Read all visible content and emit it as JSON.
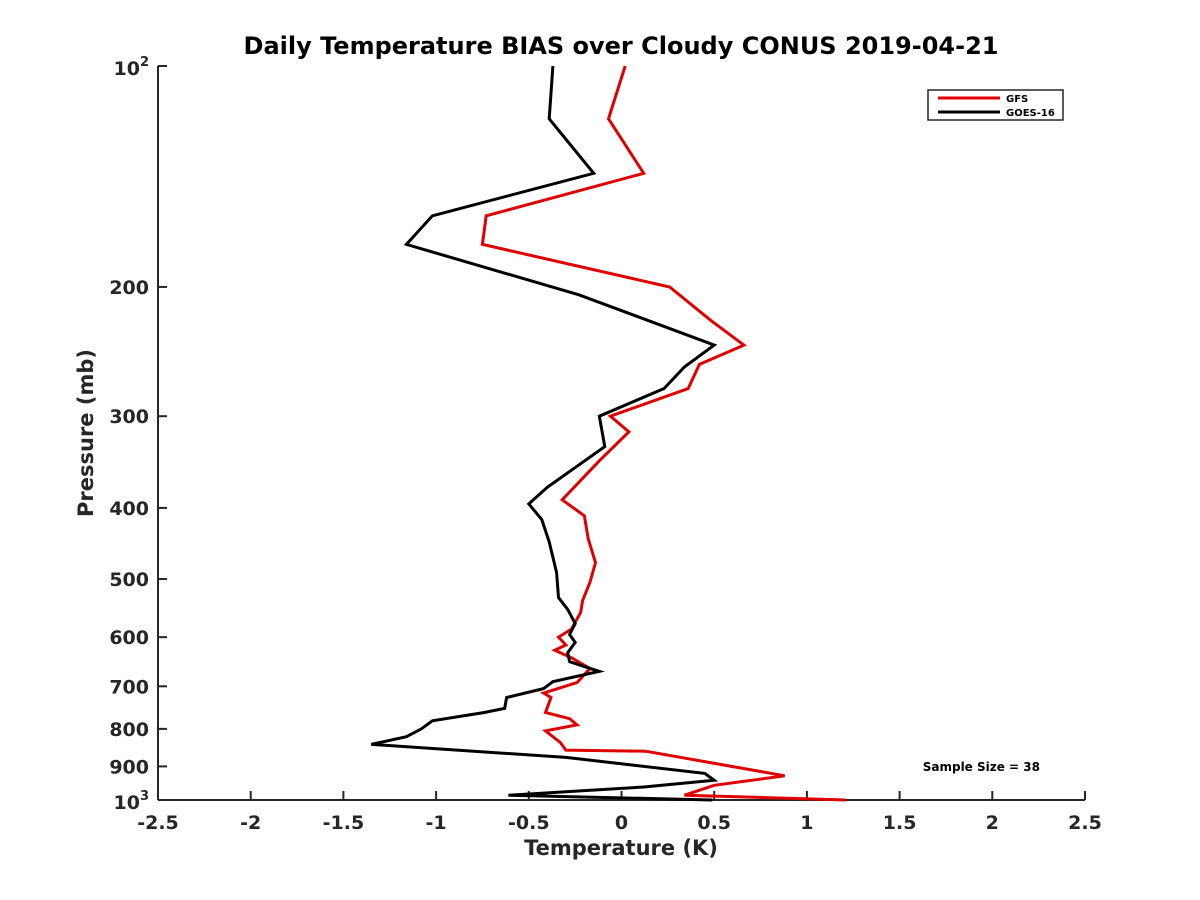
{
  "chart_data": {
    "type": "line",
    "title": "Daily Temperature BIAS over Cloudy CONUS 2019-04-21",
    "xlabel": "Temperature (K)",
    "ylabel": "Pressure (mb)",
    "xlim": [
      -2.5,
      2.5
    ],
    "ylim": [
      100,
      1000
    ],
    "y_scale": "log",
    "y_reversed": true,
    "x_ticks": [
      -2.5,
      -2,
      -1.5,
      -1,
      -0.5,
      0,
      0.5,
      1,
      1.5,
      2,
      2.5
    ],
    "x_tick_labels": [
      "-2.5",
      "-2",
      "-1.5",
      "-1",
      "-0.5",
      "0",
      "0.5",
      "1",
      "1.5",
      "2",
      "2.5"
    ],
    "y_ticks": [
      200,
      300,
      400,
      500,
      600,
      700,
      800,
      900
    ],
    "y_tick_labels": [
      "200",
      "300",
      "400",
      "500",
      "600",
      "700",
      "800",
      "900"
    ],
    "y_tick_top": {
      "base": "10",
      "exp": "2"
    },
    "y_tick_bottom": {
      "base": "10",
      "exp": "3"
    },
    "legend_position": "top-right",
    "annotation": "Sample Size = 38",
    "series": [
      {
        "name": "GFS",
        "color": "#e00000",
        "x": [
          0.02,
          -0.07,
          0.12,
          -0.73,
          -0.75,
          0.26,
          0.48,
          0.66,
          0.42,
          0.36,
          -0.06,
          0.04,
          -0.12,
          -0.32,
          -0.2,
          -0.18,
          -0.14,
          -0.17,
          -0.21,
          -0.22,
          -0.27,
          -0.34,
          -0.3,
          -0.36,
          -0.27,
          -0.17,
          -0.24,
          -0.42,
          -0.38,
          -0.41,
          -0.28,
          -0.24,
          -0.41,
          -0.33,
          -0.3,
          0.13,
          0.54,
          0.88,
          0.5,
          0.34,
          1.21
        ],
        "y": [
          100,
          118,
          140,
          160,
          175,
          200,
          222,
          240,
          255,
          275,
          300,
          315,
          345,
          390,
          410,
          440,
          475,
          505,
          535,
          555,
          585,
          600,
          615,
          625,
          640,
          662,
          692,
          715,
          725,
          760,
          775,
          790,
          805,
          835,
          855,
          858,
          895,
          927,
          955,
          985,
          1000
        ]
      },
      {
        "name": "GOES-16",
        "color": "#000000",
        "x": [
          -0.37,
          -0.39,
          -0.15,
          -1.02,
          -1.16,
          -0.23,
          0.5,
          0.34,
          0.23,
          -0.12,
          -0.09,
          -0.4,
          -0.5,
          -0.43,
          -0.39,
          -0.35,
          -0.34,
          -0.29,
          -0.25,
          -0.28,
          -0.25,
          -0.29,
          -0.28,
          -0.12,
          -0.37,
          -0.42,
          -0.62,
          -0.63,
          -0.74,
          -1.02,
          -1.08,
          -1.16,
          -1.35,
          -0.3,
          0.45,
          0.5,
          0.12,
          -0.61,
          0.49
        ],
        "y": [
          100,
          118,
          140,
          160,
          175,
          205,
          240,
          257,
          275,
          300,
          330,
          375,
          395,
          415,
          445,
          490,
          530,
          550,
          575,
          595,
          610,
          630,
          648,
          668,
          690,
          705,
          725,
          750,
          760,
          780,
          800,
          820,
          840,
          875,
          920,
          940,
          960,
          985,
          1000
        ]
      }
    ]
  }
}
